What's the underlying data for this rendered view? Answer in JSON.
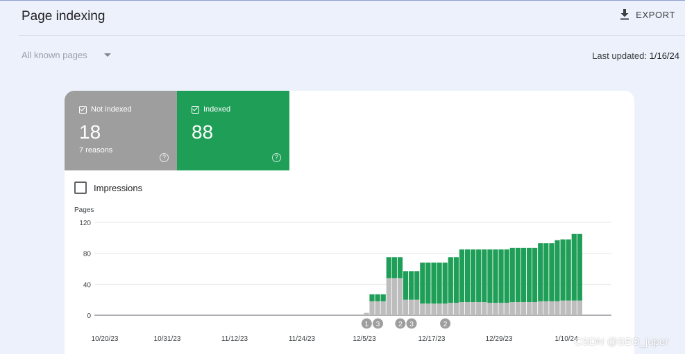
{
  "header": {
    "title": "Page indexing",
    "export_label": "EXPORT"
  },
  "filter": {
    "selected": "All known pages"
  },
  "last_updated": {
    "label": "Last updated:",
    "value": "1/16/24"
  },
  "summary": {
    "not_indexed": {
      "label": "Not indexed",
      "count": "18",
      "sub": "7 reasons",
      "color": "#9e9e9e"
    },
    "indexed": {
      "label": "Indexed",
      "count": "88",
      "color": "#1e9e57"
    }
  },
  "impressions": {
    "label": "Impressions",
    "checked": false
  },
  "chart_data": {
    "type": "bar",
    "stacked": true,
    "ylabel": "Pages",
    "ylim": [
      0,
      120
    ],
    "yticks": [
      0,
      40,
      80,
      120
    ],
    "x_tick_labels": [
      "10/20/23",
      "10/31/23",
      "11/12/23",
      "11/24/23",
      "12/5/23",
      "12/17/23",
      "12/29/23",
      "1/10/24"
    ],
    "start_date": "10/20/23",
    "series": [
      {
        "name": "Not indexed",
        "color": "#bdbdbd",
        "values": [
          0,
          0,
          0,
          0,
          0,
          0,
          0,
          0,
          0,
          0,
          0,
          0,
          0,
          0,
          0,
          0,
          0,
          0,
          0,
          0,
          0,
          0,
          0,
          0,
          0,
          0,
          0,
          0,
          0,
          0,
          0,
          0,
          0,
          0,
          0,
          0,
          0,
          0,
          0,
          0,
          0,
          0,
          0,
          0,
          0,
          0,
          0,
          0,
          3,
          18,
          18,
          18,
          48,
          48,
          48,
          20,
          20,
          20,
          15,
          15,
          15,
          15,
          15,
          16,
          16,
          17,
          17,
          17,
          17,
          17,
          16,
          16,
          16,
          16,
          17,
          17,
          17,
          17,
          17,
          18,
          18,
          18,
          18,
          19,
          19,
          19,
          19
        ]
      },
      {
        "name": "Indexed",
        "color": "#1e9e57",
        "values": [
          0,
          0,
          0,
          0,
          0,
          0,
          0,
          0,
          0,
          0,
          0,
          0,
          0,
          0,
          0,
          0,
          0,
          0,
          0,
          0,
          0,
          0,
          0,
          0,
          0,
          0,
          0,
          0,
          0,
          0,
          0,
          0,
          0,
          0,
          0,
          0,
          0,
          0,
          0,
          0,
          0,
          0,
          0,
          0,
          0,
          0,
          0,
          0,
          0,
          9,
          9,
          9,
          27,
          27,
          27,
          37,
          37,
          37,
          53,
          53,
          53,
          53,
          53,
          59,
          59,
          68,
          68,
          68,
          68,
          68,
          69,
          69,
          69,
          69,
          70,
          70,
          70,
          70,
          70,
          75,
          75,
          75,
          79,
          79,
          79,
          86,
          86
        ]
      }
    ],
    "annotations": [
      {
        "date_index": 48,
        "label": "1"
      },
      {
        "date_index": 50,
        "label": "3"
      },
      {
        "date_index": 54,
        "label": "2"
      },
      {
        "date_index": 56,
        "label": "3"
      },
      {
        "date_index": 62,
        "label": "2"
      }
    ]
  },
  "watermark": "CSDN @SEO_juper"
}
